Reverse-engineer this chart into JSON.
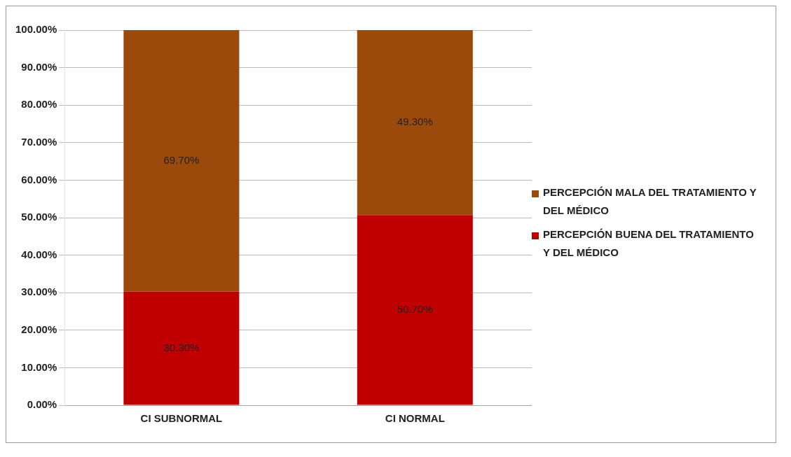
{
  "chart_data": {
    "type": "bar",
    "stacked": true,
    "categories": [
      "CI SUBNORMAL",
      "CI NORMAL"
    ],
    "series": [
      {
        "name": "PERCEPCIÓN BUENA DEL TRATAMIENTO Y DEL MÉDICO",
        "color": "#c00000",
        "values": [
          30.3,
          50.7
        ],
        "value_labels": [
          "30.30%",
          "50.70%"
        ]
      },
      {
        "name": "PERCEPCIÓN MALA DEL TRATAMIENTO Y DEL MÉDICO",
        "color": "#9c4a0c",
        "values": [
          69.7,
          49.3
        ],
        "value_labels": [
          "69.70%",
          "49.30%"
        ]
      }
    ],
    "ylim": [
      0,
      100
    ],
    "yticks": [
      {
        "value": 0,
        "label": "0.00%"
      },
      {
        "value": 10,
        "label": "10.00%"
      },
      {
        "value": 20,
        "label": "20.00%"
      },
      {
        "value": 30,
        "label": "30.00%"
      },
      {
        "value": 40,
        "label": "40.00%"
      },
      {
        "value": 50,
        "label": "50.00%"
      },
      {
        "value": 60,
        "label": "60.00%"
      },
      {
        "value": 70,
        "label": "70.00%"
      },
      {
        "value": 80,
        "label": "80.00%"
      },
      {
        "value": 90,
        "label": "90.00%"
      },
      {
        "value": 100,
        "label": "100.00%"
      }
    ],
    "grid": "y",
    "legend": "right"
  }
}
